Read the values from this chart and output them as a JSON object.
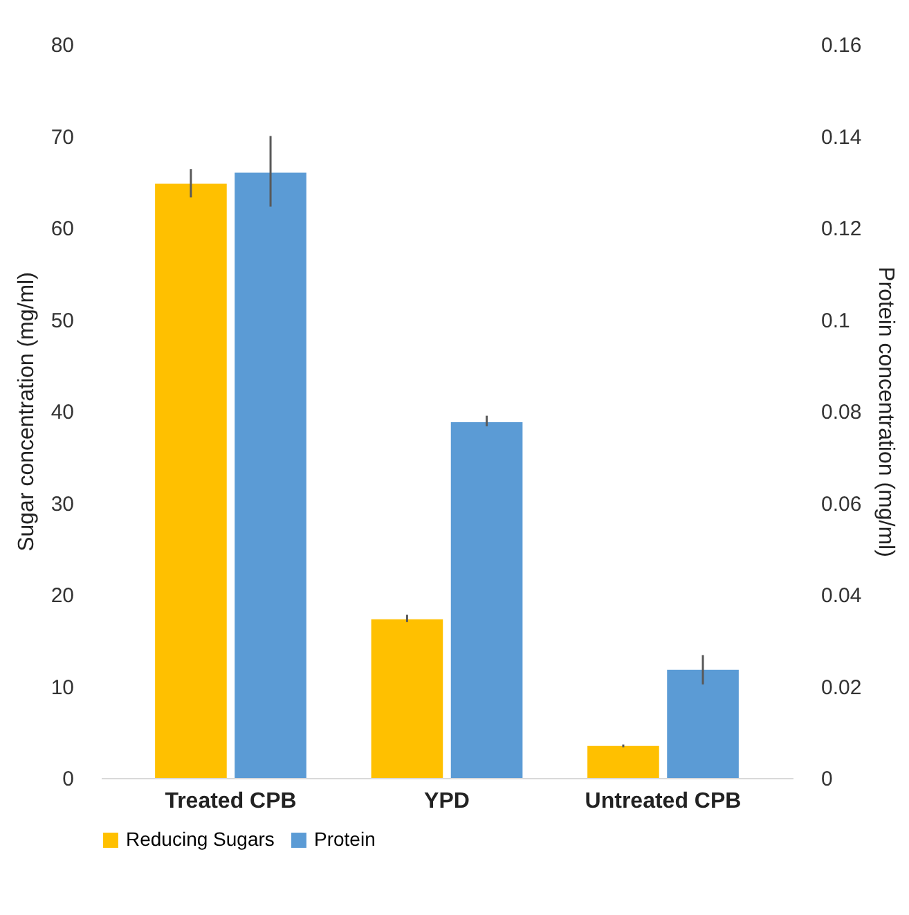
{
  "chart_data": {
    "type": "bar",
    "categories": [
      "Treated CPB",
      "YPD",
      "Untreated CPB"
    ],
    "series": [
      {
        "name": "Reducing Sugars",
        "color": "#ffc000",
        "values": [
          64.8,
          17.3,
          3.5
        ],
        "errors": [
          [
            63.3,
            66.4
          ],
          [
            17.0,
            17.8
          ],
          [
            3.35,
            3.65
          ]
        ]
      },
      {
        "name": "Protein",
        "color": "#5b9bd5",
        "axis": "y2",
        "values": [
          0.132,
          0.0776,
          0.0236
        ],
        "errors": [
          [
            0.1246,
            0.14
          ],
          [
            0.0767,
            0.079
          ],
          [
            0.0204,
            0.0268
          ]
        ]
      }
    ],
    "ylabel": "Sugar concentration (mg/ml)",
    "y2label": "Protein concentration (mg/ml)",
    "ylim": [
      0,
      80
    ],
    "yticks": [
      0,
      10,
      20,
      30,
      40,
      50,
      60,
      70,
      80
    ],
    "y2lim": [
      0,
      0.16
    ],
    "y2ticks": [
      0,
      0.02,
      0.04,
      0.06,
      0.08,
      0.1,
      0.12,
      0.14,
      0.16
    ],
    "grid": false,
    "legend": "bottom"
  }
}
